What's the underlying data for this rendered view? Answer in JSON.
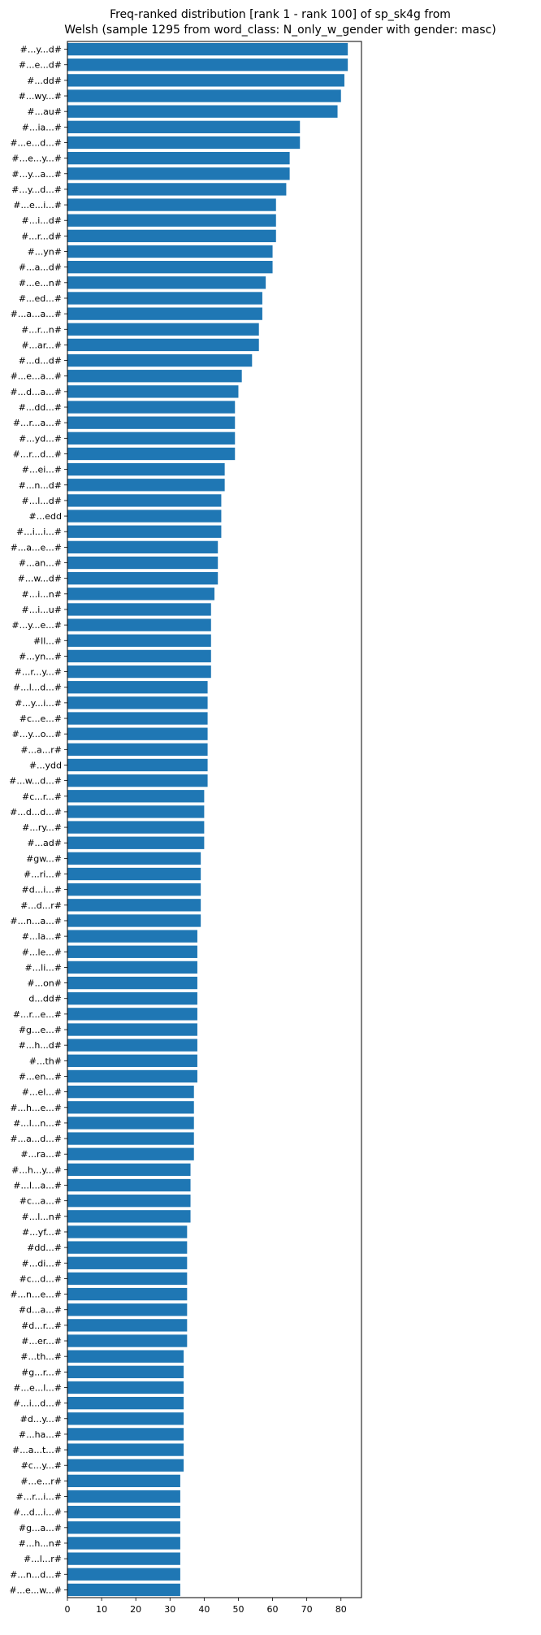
{
  "chart_data": {
    "type": "bar",
    "orientation": "horizontal",
    "title": [
      "Freq-ranked distribution [rank 1 - rank 100] of sp_sk4g from",
      "Welsh (sample 1295 from word_class: N_only_w_gender with gender: masc)"
    ],
    "xlabel": "",
    "ylabel": "",
    "xlim": [
      0,
      86
    ],
    "xticks": [
      0,
      10,
      20,
      30,
      40,
      50,
      60,
      70,
      80
    ],
    "grid": false,
    "bar_color": "#1f77b4",
    "categories": [
      "#...y...d#",
      "#...e...d#",
      "#...dd#",
      "#...wy...#",
      "#...au#",
      "#...ia...#",
      "#...e...d...#",
      "#...e...y...#",
      "#...y...a...#",
      "#...y...d...#",
      "#...e...i...#",
      "#...i...d#",
      "#...r...d#",
      "#...yn#",
      "#...a...d#",
      "#...e...n#",
      "#...ed...#",
      "#...a...a...#",
      "#...r...n#",
      "#...ar...#",
      "#...d...d#",
      "#...e...a...#",
      "#...d...a...#",
      "#...dd...#",
      "#...r...a...#",
      "#...yd...#",
      "#...r...d...#",
      "#...ei...#",
      "#...n...d#",
      "#...l...d#",
      "#...edd",
      "#...i...i...#",
      "#...a...e...#",
      "#...an...#",
      "#...w...d#",
      "#...i...n#",
      "#...i...u#",
      "#...y...e...#",
      "#ll...#",
      "#...yn...#",
      "#...r...y...#",
      "#...l...d...#",
      "#...y...i...#",
      "#c...e...#",
      "#...y...o...#",
      "#...a...r#",
      "#...ydd",
      "#...w...d...#",
      "#c...r...#",
      "#...d...d...#",
      "#...ry...#",
      "#...ad#",
      "#gw...#",
      "#...ri...#",
      "#d...i...#",
      "#...d...r#",
      "#...n...a...#",
      "#...la...#",
      "#...le...#",
      "#...li...#",
      "#...on#",
      "d...dd#",
      "#...r...e...#",
      "#g...e...#",
      "#...h...d#",
      "#...th#",
      "#...en...#",
      "#...el...#",
      "#...h...e...#",
      "#...l...n...#",
      "#...a...d...#",
      "#...ra...#",
      "#...h...y...#",
      "#...l...a...#",
      "#c...a...#",
      "#...l...n#",
      "#...yf...#",
      "#dd...#",
      "#...di...#",
      "#c...d...#",
      "#...n...e...#",
      "#d...a...#",
      "#d...r...#",
      "#...er...#",
      "#...th...#",
      "#g...r...#",
      "#...e...l...#",
      "#...i...d...#",
      "#d...y...#",
      "#...ha...#",
      "#...a...t...#",
      "#c...y...#",
      "#...e...r#",
      "#...r...i...#",
      "#...d...i...#",
      "#g...a...#",
      "#...h...n#",
      "#...l...r#",
      "#...n...d...#",
      "#...e...w...#"
    ],
    "values": [
      82,
      82,
      81,
      80,
      79,
      68,
      68,
      65,
      65,
      64,
      61,
      61,
      61,
      60,
      60,
      58,
      57,
      57,
      56,
      56,
      54,
      51,
      50,
      49,
      49,
      49,
      49,
      46,
      46,
      45,
      45,
      45,
      44,
      44,
      44,
      43,
      42,
      42,
      42,
      42,
      42,
      41,
      41,
      41,
      41,
      41,
      41,
      41,
      40,
      40,
      40,
      40,
      39,
      39,
      39,
      39,
      39,
      38,
      38,
      38,
      38,
      38,
      38,
      38,
      38,
      38,
      38,
      37,
      37,
      37,
      37,
      37,
      36,
      36,
      36,
      36,
      35,
      35,
      35,
      35,
      35,
      35,
      35,
      35,
      34,
      34,
      34,
      34,
      34,
      34,
      34,
      34,
      33,
      33,
      33,
      33,
      33,
      33,
      33,
      33
    ]
  }
}
